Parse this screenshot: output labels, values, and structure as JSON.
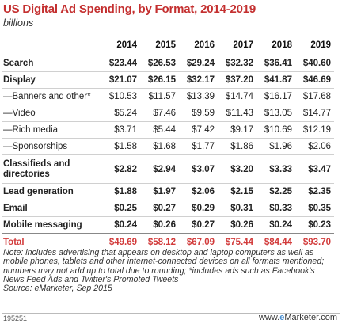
{
  "title": "US Digital Ad Spending, by Format, 2014-2019",
  "subtitle": "billions",
  "chart_data": {
    "type": "table",
    "columns": [
      "2014",
      "2015",
      "2016",
      "2017",
      "2018",
      "2019"
    ],
    "rows": [
      {
        "label": "Search",
        "values": [
          "$23.44",
          "$26.53",
          "$29.24",
          "$32.32",
          "$36.41",
          "$40.60"
        ],
        "style": "bold"
      },
      {
        "label": "Display",
        "values": [
          "$21.07",
          "$26.15",
          "$32.17",
          "$37.20",
          "$41.87",
          "$46.69"
        ],
        "style": "bold"
      },
      {
        "label": "—Banners and other*",
        "values": [
          "$10.53",
          "$11.57",
          "$13.39",
          "$14.74",
          "$16.17",
          "$17.68"
        ],
        "style": "normal"
      },
      {
        "label": "—Video",
        "values": [
          "$5.24",
          "$7.46",
          "$9.59",
          "$11.43",
          "$13.05",
          "$14.77"
        ],
        "style": "normal"
      },
      {
        "label": "—Rich media",
        "values": [
          "$3.71",
          "$5.44",
          "$7.42",
          "$9.17",
          "$10.69",
          "$12.19"
        ],
        "style": "normal"
      },
      {
        "label": "—Sponsorships",
        "values": [
          "$1.58",
          "$1.68",
          "$1.77",
          "$1.86",
          "$1.96",
          "$2.06"
        ],
        "style": "normal"
      },
      {
        "label": "Classifieds and directories",
        "values": [
          "$2.82",
          "$2.94",
          "$3.07",
          "$3.20",
          "$3.33",
          "$3.47"
        ],
        "style": "bold-tall"
      },
      {
        "label": "Lead generation",
        "values": [
          "$1.88",
          "$1.97",
          "$2.06",
          "$2.15",
          "$2.25",
          "$2.35"
        ],
        "style": "bold"
      },
      {
        "label": "Email",
        "values": [
          "$0.25",
          "$0.27",
          "$0.29",
          "$0.31",
          "$0.33",
          "$0.35"
        ],
        "style": "bold"
      },
      {
        "label": "Mobile messaging",
        "values": [
          "$0.24",
          "$0.26",
          "$0.27",
          "$0.26",
          "$0.24",
          "$0.23"
        ],
        "style": "bold"
      },
      {
        "label": "Total",
        "values": [
          "$49.69",
          "$58.12",
          "$67.09",
          "$75.44",
          "$84.44",
          "$93.70"
        ],
        "style": "total"
      }
    ],
    "total_color": "#d23b3b",
    "title_color": "#c43030"
  },
  "note": "Note: includes advertising that appears on desktop and laptop computers as well as mobile phones, tablets and other internet-connected devices on all formats mentioned; numbers may not add up to total due to rounding; *includes ads such as Facebook's News Feed Ads and Twitter's Promoted Tweets",
  "source": "Source: eMarketer, Sep 2015",
  "footer_id": "195251",
  "brand": {
    "prefix": "www.",
    "e": "e",
    "rest": "Marketer",
    "suffix": ".com"
  }
}
